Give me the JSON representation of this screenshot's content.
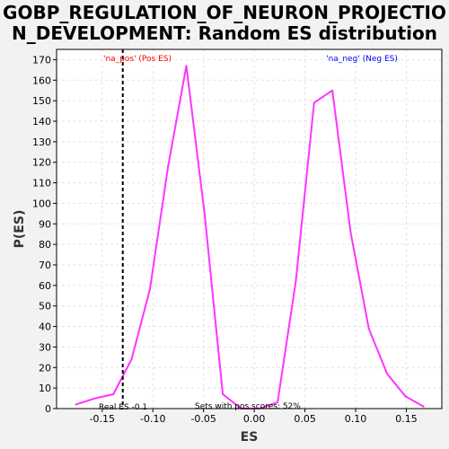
{
  "chart_data": {
    "type": "line",
    "title": "GOBP_REGULATION_OF_NEURON_PROJECTIO\nN_DEVELOPMENT: Random ES distribution",
    "title_lines": [
      "GOBP_REGULATION_OF_NEURON_PROJECTIO",
      "N_DEVELOPMENT: Random ES distribution"
    ],
    "xlabel": "ES",
    "ylabel": "P(ES)",
    "xlim": [
      -0.195,
      0.185
    ],
    "ylim": [
      0,
      175
    ],
    "x_ticks": [
      -0.15,
      -0.1,
      -0.05,
      0.0,
      0.05,
      0.1,
      0.15
    ],
    "x_tick_labels": [
      "-0.15",
      "-0.10",
      "-0.05",
      "0.00",
      "0.05",
      "0.10",
      "0.15"
    ],
    "y_ticks": [
      0,
      10,
      20,
      30,
      40,
      50,
      60,
      70,
      80,
      90,
      100,
      110,
      120,
      130,
      140,
      150,
      160,
      170
    ],
    "y_tick_labels": [
      "0",
      "10",
      "20",
      "30",
      "40",
      "50",
      "60",
      "70",
      "80",
      "90",
      "100",
      "110",
      "120",
      "130",
      "140",
      "150",
      "160",
      "170"
    ],
    "grid": true,
    "series": [
      {
        "color": "#ff33ff",
        "x": [
          -0.176,
          -0.157,
          -0.139,
          -0.121,
          -0.103,
          -0.085,
          -0.067,
          -0.049,
          -0.031,
          -0.013,
          0.005,
          0.023,
          0.041,
          0.059,
          0.077,
          0.095,
          0.113,
          0.131,
          0.149,
          0.167
        ],
        "y": [
          2,
          5,
          7,
          24,
          58,
          118,
          167,
          95,
          7,
          0,
          0,
          3,
          62,
          149,
          155,
          86,
          39,
          17,
          6,
          1
        ]
      }
    ],
    "real_es": -0.1297,
    "annotations": {
      "pos_label": "'na_pos' (Pos ES)",
      "neg_label": "'na_neg' (Neg ES)",
      "real_es_label": "Real ES -0.1",
      "sets_label": "Sets with pos scores: 52%"
    },
    "colors": {
      "line": "#ff33ff",
      "pos_label": "#ff0000",
      "neg_label": "#0000ff",
      "grid": "#e3e3e3",
      "real_es_line": "#000000"
    }
  }
}
